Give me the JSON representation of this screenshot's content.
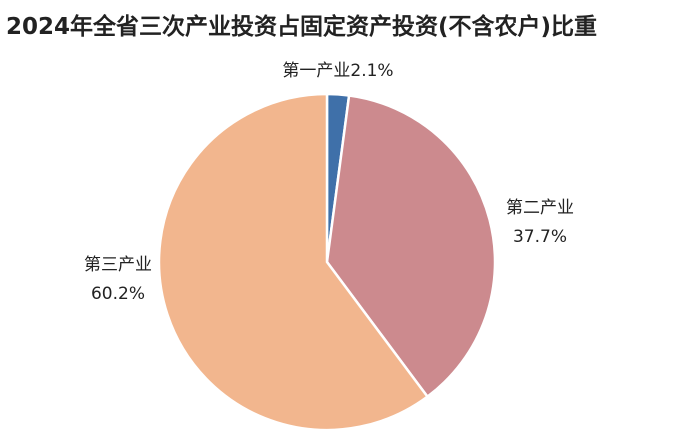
{
  "chart_data": {
    "type": "pie",
    "title": "2024年全省三次产业投资占固定资产投资(不含农户)比重",
    "categories": [
      "第一产业",
      "第二产业",
      "第三产业"
    ],
    "values": [
      2.1,
      37.7,
      60.2
    ],
    "value_labels": [
      "2.1%",
      "37.7%",
      "60.2%"
    ],
    "colors": [
      "#3f70a9",
      "#cc8a8e",
      "#f2b68e"
    ]
  }
}
